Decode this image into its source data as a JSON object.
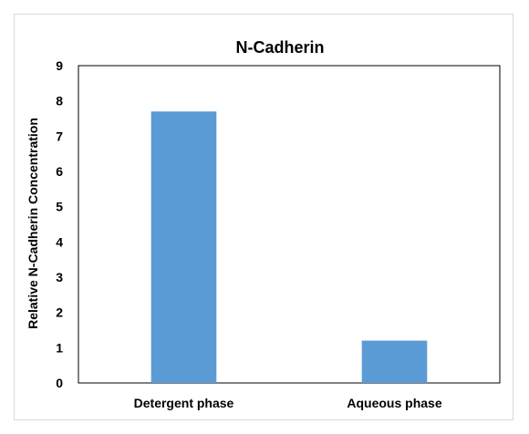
{
  "chart_data": {
    "type": "bar",
    "title": "N-Cadherin",
    "xlabel": "",
    "ylabel": "Relative N-Cadherin Concentration",
    "categories": [
      "Detergent phase",
      "Aqueous phase"
    ],
    "values": [
      7.7,
      1.2
    ],
    "ylim": [
      0,
      9
    ],
    "yticks": [
      0,
      1,
      2,
      3,
      4,
      5,
      6,
      7,
      8,
      9
    ],
    "grid": false,
    "legend": "none",
    "bar_color": "#5b9bd5"
  }
}
